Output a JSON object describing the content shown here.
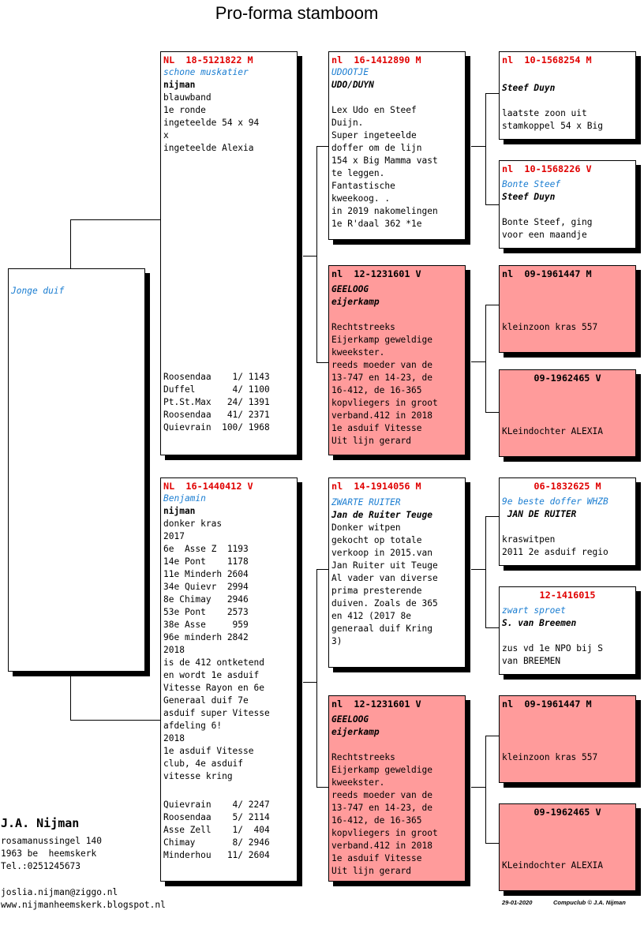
{
  "title": "Pro-forma stamboom",
  "root": {
    "name": "Jonge duif"
  },
  "sire": {
    "header": "NL  18-5121822 M",
    "name": "schone muskatier",
    "owner": "nijman",
    "text": "blauwband\n1e ronde\ningeteelde 54 x 94\nx\ningeteelde Alexia",
    "results": "Roosendaa    1/ 1143\nDuffel       4/ 1100\nPt.St.Max   24/ 1391\nRoosendaa   41/ 2371\nQuievrain  100/ 1968"
  },
  "dam": {
    "header": "NL  16-1440412 V",
    "name": "Benjamin",
    "owner": "nijman",
    "text": "donker kras\n2017\n6e  Asse Z  1193\n14e Pont    1178\n11e Minderh 2604\n34e Quievr  2994\n8e Chimay   2946\n53e Pont    2573\n38e Asse     959\n96e minderh 2842\n2018\nis de 412 ontketend\nen wordt 1e asduif\nVitesse Rayon en 6e\nGeneraal duif 7e\nasduif super Vitesse\nafdeling 6!\n2018\n1e asduif Vitesse\nclub, 4e asduif\nvitesse kring",
    "results": "Quievrain    4/ 2247\nRoosendaa    5/ 2114\nAsse Zell    1/  404\nChimay       8/ 2946\nMinderhou   11/ 2604"
  },
  "ss": {
    "header": "nl  16-1412890 M",
    "name": "UDOOTJE",
    "owner": "UDO/DUYN",
    "text": "Lex Udo en Steef\nDuijn.\nSuper ingeteelde\ndoffer om de lijn\n154 x Big Mamma vast\nte leggen.\nFantastische\nkweekoog. .\nin 2019 nakomelingen\n1e R'daal 362 *1e"
  },
  "sd": {
    "header": "nl  12-1231601 V",
    "name": "GEELOOG",
    "owner": "eijerkamp",
    "text": "Rechtstreeks\nEijerkamp geweldige\nkweekster.\nreeds moeder van de\n13-747 en 14-23, de\n16-412, de 16-365\nkopvliegers in groot\nverband.412 in 2018\n1e asduif Vitesse\nUit lijn gerard"
  },
  "ds": {
    "header": "nl  14-1914056 M",
    "name": "ZWARTE RUITER",
    "owner": "Jan de Ruiter Teuge",
    "text": "Donker witpen\ngekocht op totale\nverkoop in 2015.van\nJan Ruiter uit Teuge\nAl vader van diverse\nprima presterende\nduiven. Zoals de 365\nen 412 (2017 8e\ngeneraal duif Kring\n3)"
  },
  "dd": {
    "header": "nl  12-1231601 V",
    "name": "GEELOOG",
    "owner": "eijerkamp",
    "text": "Rechtstreeks\nEijerkamp geweldige\nkweekster.\nreeds moeder van de\n13-747 en 14-23, de\n16-412, de 16-365\nkopvliegers in groot\nverband.412 in 2018\n1e asduif Vitesse\nUit lijn gerard"
  },
  "sss": {
    "header": "nl  10-1568254 M",
    "owner": "Steef Duyn",
    "text": "laatste zoon uit\nstamkoppel 54 x Big"
  },
  "ssd": {
    "header": "nl  10-1568226 V",
    "name": "Bonte Steef",
    "owner": "Steef Duyn",
    "text": "Bonte Steef, ging\nvoor een maandje"
  },
  "sds": {
    "header": "nl  09-1961447 M",
    "text": "kleinzoon kras 557"
  },
  "sdd": {
    "header": "09-1962465 V",
    "text": "KLeindochter ALEXIA"
  },
  "dss": {
    "header": "06-1832625 M",
    "name": "9e beste doffer WHZB",
    "owner": " JAN DE RUITER",
    "text": "kraswitpen\n2011 2e asduif regio"
  },
  "dsd": {
    "header": "12-1416015",
    "name": "zwart sproet",
    "owner": "S. van Breemen",
    "text": "zus vd 1e NPO bij S\nvan BREEMEN"
  },
  "dds": {
    "header": "nl  09-1961447 M",
    "text": "kleinzoon kras 557"
  },
  "ddd": {
    "header": "09-1962465 V",
    "text": "KLeindochter ALEXIA"
  },
  "breeder": {
    "name": "J.A. Nijman",
    "address": "rosamanussingel 140\n1963 be  heemskerk\nTel.:0251245673",
    "email": "joslia.nijman@ziggo.nl",
    "website": "www.nijmanheemskerk.blogspot.nl"
  },
  "footer": {
    "date": "29-01-2020",
    "credit": "Compuclub © J.A. Nijman"
  },
  "colors": {
    "header_red": "#e00000",
    "name_blue": "#1a7dd1",
    "pink_box": "#ff9b9b"
  }
}
